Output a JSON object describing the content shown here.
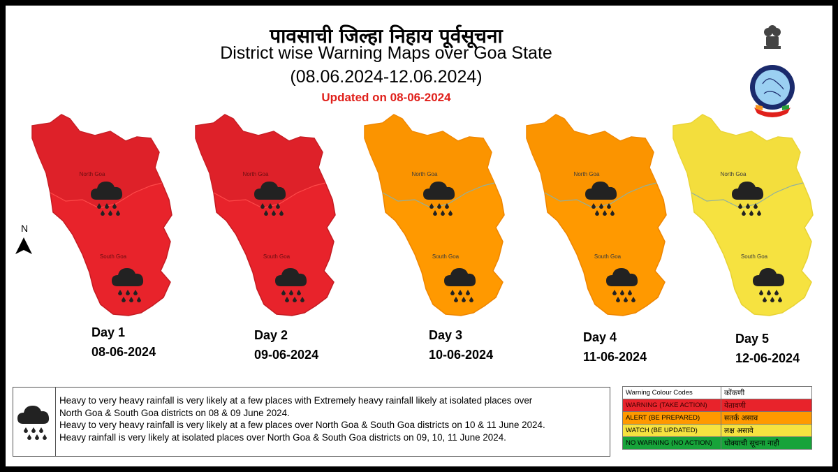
{
  "title_marathi": "पावसाची जिल्हा निहाय पूर्वसूचना",
  "title_english": "District wise Warning Maps  over Goa State",
  "date_range": "(08.06.2024-12.06.2024)",
  "updated": "Updated on 08-06-2024",
  "north_label": "N",
  "district_labels": {
    "north": "North Goa",
    "south": "South Goa"
  },
  "colors": {
    "warning": "#e8232b",
    "alert": "#ff9900",
    "watch": "#f6e240",
    "no_warning": "#17a33a"
  },
  "days": [
    {
      "label": "Day 1",
      "date": "08-06-2024",
      "warning_level": "warning"
    },
    {
      "label": "Day 2",
      "date": "09-06-2024",
      "warning_level": "warning"
    },
    {
      "label": "Day 3",
      "date": "10-06-2024",
      "warning_level": "alert"
    },
    {
      "label": "Day 4",
      "date": "11-06-2024",
      "warning_level": "alert"
    },
    {
      "label": "Day 5",
      "date": "12-06-2024",
      "warning_level": "watch"
    }
  ],
  "legend_icon": "rain-cloud-icon",
  "legend_lines": [
    "Heavy to very heavy rainfall is very likely at a few places with Extremely heavy rainfall likely at isolated places over",
    "North Goa & South Goa districts on 08 & 09  June 2024.",
    "Heavy to very heavy rainfall is very likely at a few places over North Goa & South Goa districts on 10 & 11 June 2024.",
    "Heavy rainfall is very likely at isolated places over North Goa & South Goa districts on 09, 10, 11 June 2024."
  ],
  "colour_codes": {
    "header_en": "Warning Colour Codes",
    "header_mr": "कोंकणी",
    "rows": [
      {
        "en": "WARNING (TAKE ACTION)",
        "mr": "येतावणी",
        "color": "#e8232b",
        "text_color": "#3a0000"
      },
      {
        "en": "ALERT (BE PREPARED)",
        "mr": "सतर्क  असाव",
        "color": "#ff9900",
        "text_color": "#000000"
      },
      {
        "en": "WATCH (BE UPDATED)",
        "mr": "लक्ष असावे",
        "color": "#f6e240",
        "text_color": "#000000"
      },
      {
        "en": "NO WARNING (NO ACTION)",
        "mr": "धोक्याची सूचना नाही",
        "color": "#17a33a",
        "text_color": "#000000"
      }
    ]
  }
}
